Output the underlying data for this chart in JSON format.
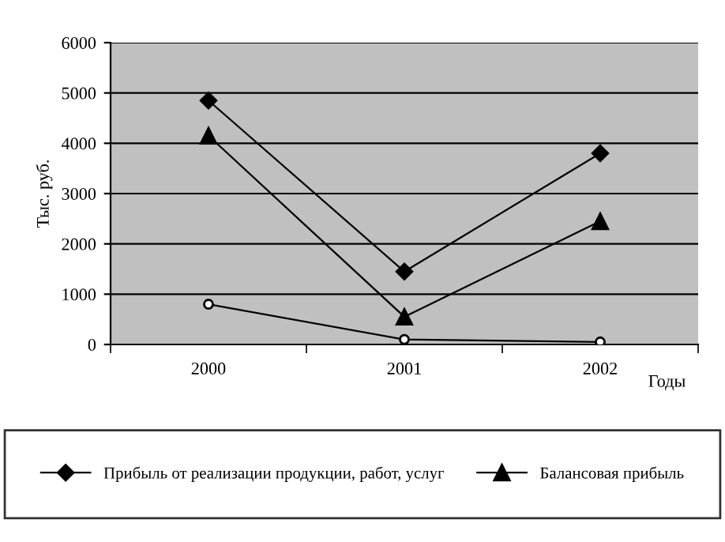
{
  "chart_data": {
    "type": "line",
    "xlabel": "Годы",
    "ylabel": "Тыс. руб.",
    "categories": [
      "2000",
      "2001",
      "2002"
    ],
    "series": [
      {
        "name": "Прибыль от реализации продукции, работ, услуг",
        "color": "#000000",
        "marker": "diamond",
        "values": [
          4850,
          1450,
          3800
        ]
      },
      {
        "name": "Балансовая прибыль",
        "color": "#000000",
        "marker": "triangle",
        "values": [
          4150,
          550,
          2450
        ]
      },
      {
        "color": "#000000",
        "marker": "circle",
        "values": [
          800,
          100,
          50
        ]
      }
    ],
    "ylim": [
      0,
      6000
    ],
    "yticks": [
      0,
      1000,
      2000,
      3000,
      4000,
      5000,
      6000
    ],
    "grid": "y",
    "legend": "bottom"
  }
}
